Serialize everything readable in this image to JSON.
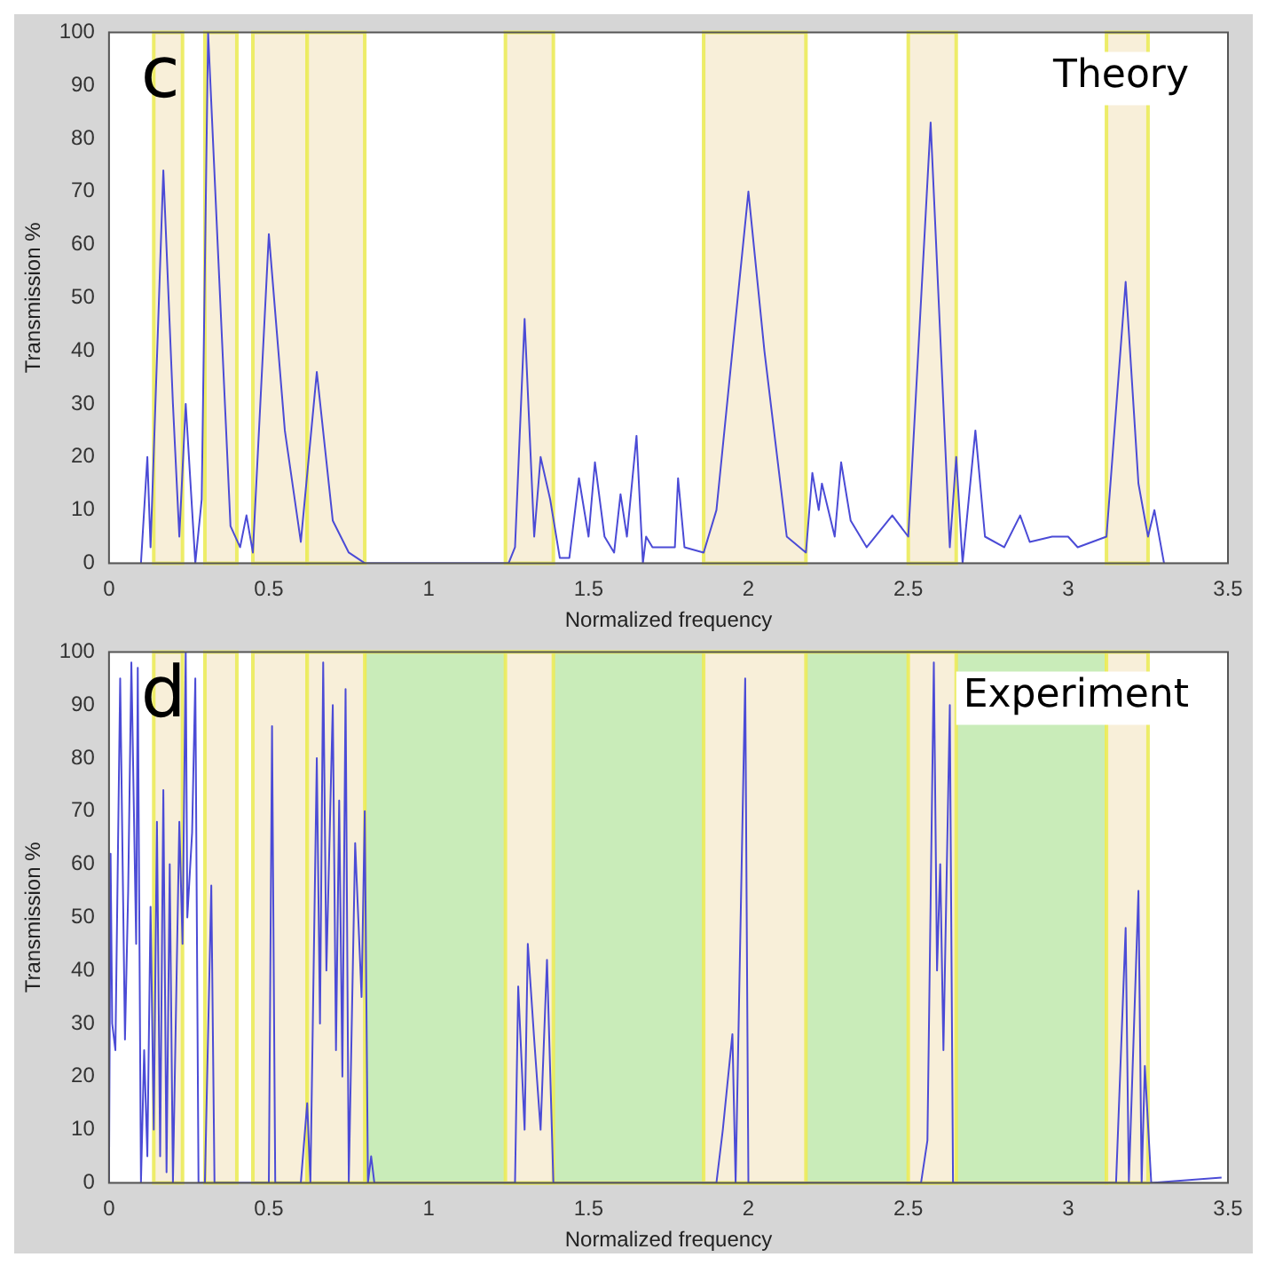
{
  "chart_data": [
    {
      "type": "line",
      "xlabel": "Normalized frequency",
      "ylabel": "Transmission %",
      "xlim": [
        0,
        3.5
      ],
      "ylim": [
        0,
        100
      ],
      "xticks": [
        0,
        0.5,
        1,
        1.5,
        2,
        2.5,
        3,
        3.5
      ],
      "yticks": [
        0,
        10,
        20,
        30,
        40,
        50,
        60,
        70,
        80,
        90,
        100
      ],
      "annotations": [
        "c",
        "Theory"
      ],
      "x": [
        0.1,
        0.12,
        0.13,
        0.17,
        0.2,
        0.22,
        0.24,
        0.27,
        0.29,
        0.31,
        0.34,
        0.38,
        0.41,
        0.43,
        0.45,
        0.5,
        0.55,
        0.6,
        0.65,
        0.7,
        0.75,
        0.8,
        1.25,
        1.27,
        1.3,
        1.33,
        1.35,
        1.38,
        1.41,
        1.44,
        1.47,
        1.5,
        1.52,
        1.55,
        1.58,
        1.6,
        1.62,
        1.65,
        1.67,
        1.68,
        1.7,
        1.77,
        1.78,
        1.8,
        1.86,
        1.9,
        1.95,
        2.0,
        2.05,
        2.12,
        2.18,
        2.2,
        2.22,
        2.23,
        2.27,
        2.29,
        2.32,
        2.37,
        2.45,
        2.5,
        2.57,
        2.63,
        2.65,
        2.67,
        2.71,
        2.74,
        2.8,
        2.85,
        2.88,
        2.95,
        3.0,
        3.03,
        3.12,
        3.18,
        3.22,
        3.25,
        3.27,
        3.3
      ],
      "values": [
        0,
        20,
        3,
        74,
        30,
        5,
        30,
        0,
        12,
        100,
        60,
        7,
        3,
        9,
        2,
        62,
        25,
        4,
        36,
        8,
        2,
        0,
        0,
        3,
        46,
        5,
        20,
        12,
        1,
        1,
        16,
        5,
        19,
        5,
        2,
        13,
        5,
        24,
        0,
        5,
        3,
        3,
        16,
        3,
        2,
        10,
        40,
        70,
        40,
        5,
        2,
        17,
        10,
        15,
        5,
        19,
        8,
        3,
        9,
        5,
        83,
        3,
        20,
        0,
        25,
        5,
        3,
        9,
        4,
        5,
        5,
        3,
        5,
        53,
        15,
        5,
        10,
        0
      ],
      "color": "#4b4bd6",
      "bands": [
        {
          "axis": "x",
          "from": 0.14,
          "to": 0.23,
          "color": "#f8efd9"
        },
        {
          "axis": "x",
          "from": 0.3,
          "to": 0.4,
          "color": "#f8efd9"
        },
        {
          "axis": "x",
          "from": 0.45,
          "to": 0.62,
          "color": "#f8efd9"
        },
        {
          "axis": "x",
          "from": 0.62,
          "to": 0.8,
          "color": "#f8efd9"
        },
        {
          "axis": "x",
          "from": 1.24,
          "to": 1.39,
          "color": "#f8efd9"
        },
        {
          "axis": "x",
          "from": 1.86,
          "to": 2.18,
          "color": "#f8efd9"
        },
        {
          "axis": "x",
          "from": 2.5,
          "to": 2.65,
          "color": "#f8efd9"
        },
        {
          "axis": "x",
          "from": 3.12,
          "to": 3.25,
          "color": "#f8efd9"
        }
      ]
    },
    {
      "type": "line",
      "xlabel": "Normalized frequency",
      "ylabel": "Transmission %",
      "xlim": [
        0,
        3.5
      ],
      "ylim": [
        0,
        100
      ],
      "xticks": [
        0,
        0.5,
        1,
        1.5,
        2,
        2.5,
        3,
        3.5
      ],
      "yticks": [
        0,
        10,
        20,
        30,
        40,
        50,
        60,
        70,
        80,
        90,
        100
      ],
      "annotations": [
        "d",
        "Experiment"
      ],
      "x": [
        0,
        0.005,
        0.01,
        0.02,
        0.035,
        0.05,
        0.06,
        0.07,
        0.085,
        0.09,
        0.1,
        0.11,
        0.12,
        0.13,
        0.14,
        0.15,
        0.16,
        0.17,
        0.18,
        0.19,
        0.2,
        0.22,
        0.23,
        0.24,
        0.245,
        0.26,
        0.27,
        0.28,
        0.3,
        0.32,
        0.33,
        0.5,
        0.51,
        0.52,
        0.6,
        0.62,
        0.63,
        0.65,
        0.66,
        0.67,
        0.68,
        0.7,
        0.71,
        0.72,
        0.73,
        0.74,
        0.75,
        0.77,
        0.79,
        0.8,
        0.81,
        0.82,
        0.83,
        1.27,
        1.28,
        1.3,
        1.31,
        1.33,
        1.35,
        1.37,
        1.39,
        1.9,
        1.92,
        1.95,
        1.96,
        1.99,
        2.0,
        2.54,
        2.56,
        2.58,
        2.59,
        2.6,
        2.61,
        2.63,
        2.64,
        3.15,
        3.18,
        3.19,
        3.22,
        3.23,
        3.24,
        3.26,
        3.48
      ],
      "values": [
        0,
        62,
        30,
        25,
        95,
        27,
        55,
        98,
        45,
        97,
        0,
        25,
        5,
        52,
        10,
        68,
        5,
        74,
        2,
        60,
        0,
        68,
        45,
        100,
        50,
        66,
        95,
        0,
        0,
        56,
        0,
        0,
        86,
        0,
        0,
        15,
        0,
        80,
        30,
        98,
        40,
        90,
        25,
        72,
        20,
        93,
        0,
        64,
        35,
        70,
        0,
        5,
        0,
        0,
        37,
        10,
        45,
        27,
        10,
        42,
        0,
        0,
        10,
        28,
        0,
        95,
        0,
        0,
        8,
        98,
        40,
        60,
        25,
        90,
        0,
        0,
        48,
        0,
        55,
        0,
        22,
        0,
        1
      ],
      "color": "#4b4bd6",
      "bands": [
        {
          "axis": "x",
          "from": 0.8,
          "to": 3.12,
          "color": "#c9ecb9"
        },
        {
          "axis": "x",
          "from": 0.14,
          "to": 0.23,
          "color": "#f8efd9"
        },
        {
          "axis": "x",
          "from": 0.3,
          "to": 0.4,
          "color": "#f8efd9"
        },
        {
          "axis": "x",
          "from": 0.45,
          "to": 0.62,
          "color": "#f8efd9"
        },
        {
          "axis": "x",
          "from": 0.62,
          "to": 0.8,
          "color": "#f8efd9"
        },
        {
          "axis": "x",
          "from": 1.24,
          "to": 1.39,
          "color": "#f8efd9"
        },
        {
          "axis": "x",
          "from": 1.86,
          "to": 2.18,
          "color": "#f8efd9"
        },
        {
          "axis": "x",
          "from": 2.5,
          "to": 2.65,
          "color": "#f8efd9"
        },
        {
          "axis": "x",
          "from": 3.12,
          "to": 3.25,
          "color": "#f8efd9"
        }
      ]
    }
  ]
}
